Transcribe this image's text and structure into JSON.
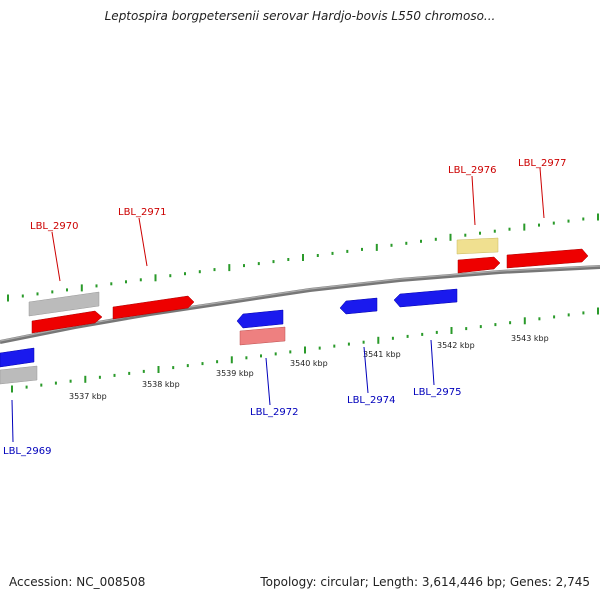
{
  "title": "Leptospira borgpetersenii serovar Hardjo-bovis L550 chromoso...",
  "footer": {
    "accession": "Accession: NC_008508",
    "summary": "Topology: circular; Length: 3,614,446 bp; Genes: 2,745"
  },
  "scale": {
    "unit": "kbp",
    "tick_labels": [
      "3537 kbp",
      "3538 kbp",
      "3539 kbp",
      "3540 kbp",
      "3541 kbp",
      "3542 kbp",
      "3543 kbp"
    ]
  },
  "genes_forward": [
    "LBL_2970",
    "LBL_2971",
    "LBL_2976",
    "LBL_2977"
  ],
  "genes_reverse": [
    "LBL_2969",
    "LBL_2972",
    "LBL_2974",
    "LBL_2975"
  ],
  "colors": {
    "forward_gene": "#ee0000",
    "reverse_gene": "#1a1aee",
    "pseudo_gene": "#bbbbbb",
    "rna_gene": "#f0e090",
    "light_gene": "#ee8080",
    "backbone": "#888888",
    "tick": "#2a9a2a",
    "forward_label": "#cc0000",
    "reverse_label": "#0000bb"
  }
}
